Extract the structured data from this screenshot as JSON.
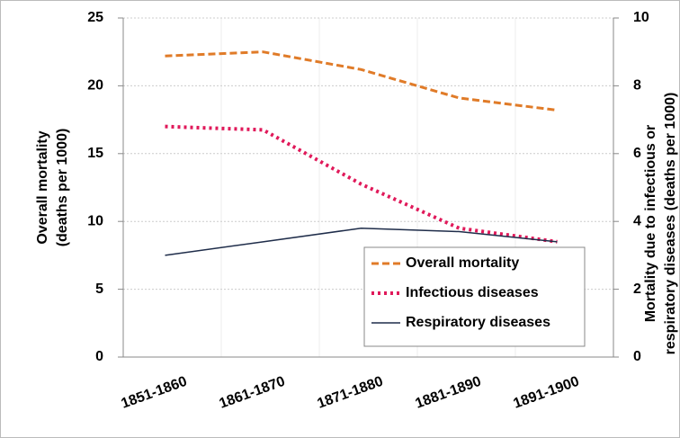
{
  "chart_data": {
    "type": "line",
    "categories": [
      "1851-1860",
      "1861-1870",
      "1871-1880",
      "1881-1890",
      "1891-1900"
    ],
    "ylabel": [
      "Overall mortality",
      "(deaths per 1000)"
    ],
    "y2label": [
      "Mortality due to infectious or",
      "respiratory diseases (deaths per 1000)"
    ],
    "ylim": [
      0,
      25
    ],
    "yticks": [
      0,
      5,
      10,
      15,
      20,
      25
    ],
    "y2lim": [
      0,
      10
    ],
    "y2ticks": [
      0,
      2,
      4,
      6,
      8,
      10
    ],
    "grid": true,
    "legend": "lower right",
    "series": [
      {
        "name": "Overall mortality",
        "color": "#e07b28",
        "dash": "dashed",
        "values": [
          22.2,
          22.5,
          21.2,
          19.1,
          18.2
        ]
      },
      {
        "name": "Infectious diseases",
        "color": "#e0195a",
        "dash": "dotted",
        "axis": "y2",
        "values": [
          6.8,
          6.7,
          5.1,
          3.8,
          3.4
        ]
      },
      {
        "name": "Respiratory diseases",
        "color": "#1f2d4a",
        "dash": "solid",
        "axis": "y2",
        "values": [
          3.0,
          3.4,
          3.8,
          3.7,
          3.4
        ]
      }
    ]
  }
}
